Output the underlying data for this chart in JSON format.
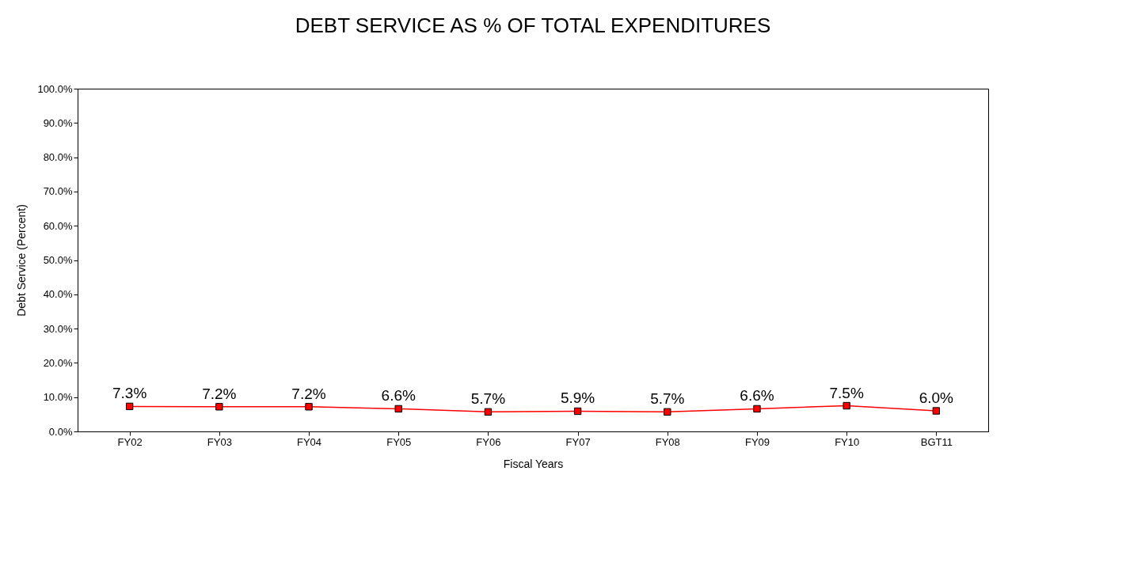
{
  "chart_data": {
    "type": "line",
    "title": "DEBT SERVICE AS % OF TOTAL EXPENDITURES",
    "xlabel": "Fiscal Years",
    "ylabel": "Debt Service (Percent)",
    "categories": [
      "FY02",
      "FY03",
      "FY04",
      "FY05",
      "FY06",
      "FY07",
      "FY08",
      "FY09",
      "FY10",
      "BGT11"
    ],
    "series": [
      {
        "color": "#ff0000",
        "values": [
          7.3,
          7.2,
          7.2,
          6.6,
          5.7,
          5.9,
          5.7,
          6.6,
          7.5,
          6.0
        ],
        "value_labels": [
          "7.3%",
          "7.2%",
          "7.2%",
          "6.6%",
          "5.7%",
          "5.9%",
          "5.7%",
          "6.6%",
          "7.5%",
          "6.0%"
        ]
      }
    ],
    "ylim": [
      0,
      100
    ],
    "yticks": [
      {
        "value": 0,
        "label": "0.0%"
      },
      {
        "value": 10,
        "label": "10.0%"
      },
      {
        "value": 20,
        "label": "20.0%"
      },
      {
        "value": 30,
        "label": "30.0%"
      },
      {
        "value": 40,
        "label": "40.0%"
      },
      {
        "value": 50,
        "label": "50.0%"
      },
      {
        "value": 60,
        "label": "60.0%"
      },
      {
        "value": 70,
        "label": "70.0%"
      },
      {
        "value": 80,
        "label": "80.0%"
      },
      {
        "value": 90,
        "label": "90.0%"
      },
      {
        "value": 100,
        "label": "100.0%"
      }
    ],
    "marker": "square",
    "line_style": "solid",
    "grid": false
  }
}
